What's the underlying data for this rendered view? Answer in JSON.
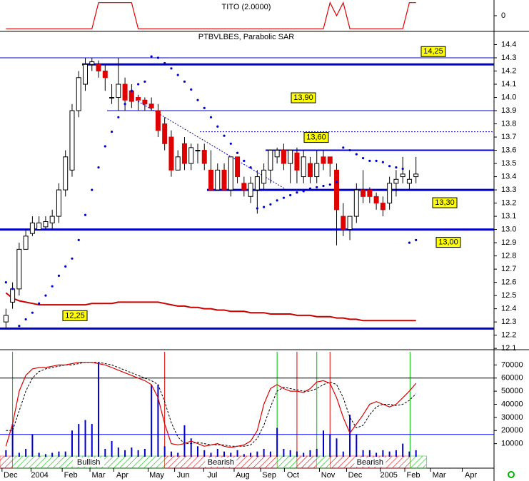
{
  "chart_data": [
    {
      "type": "line",
      "title": "TITO (2.0000)",
      "color": "#e00000",
      "x": [
        0,
        1,
        2,
        3,
        4,
        5,
        6,
        7,
        8,
        9,
        10,
        11,
        12,
        13,
        14,
        15,
        16,
        17,
        18,
        19,
        20,
        21,
        22,
        23,
        24,
        25,
        26,
        27,
        28,
        29,
        30,
        31,
        32,
        33,
        34,
        35,
        36,
        37,
        38,
        39,
        40,
        41,
        42,
        43,
        44,
        45,
        46,
        47,
        48,
        49,
        50,
        51,
        52,
        53,
        54,
        55,
        56,
        57,
        58,
        59,
        60,
        61,
        62
      ],
      "values": [
        -1,
        -1,
        -1,
        -1,
        -1,
        -1,
        -1,
        -1,
        -1,
        -1,
        -1,
        -1,
        -1,
        -1,
        1,
        1,
        1,
        1,
        1,
        1,
        -1,
        -1,
        -1,
        -1,
        -1,
        -1,
        -1,
        -1,
        -1,
        -1,
        -1,
        -1,
        -1,
        -1,
        -1,
        -1,
        -1,
        -1,
        -1,
        -1,
        -1,
        -1,
        -1,
        -1,
        -1,
        -1,
        -1,
        -1,
        -1,
        1,
        0,
        1,
        -1,
        -1,
        -1,
        -1,
        -1,
        -1,
        -1,
        -1,
        -1,
        1,
        1
      ],
      "xlim": [
        -0.9,
        73.8
      ],
      "ylim": [
        -1.2,
        1.2
      ],
      "yticks": [
        0
      ]
    },
    {
      "type": "candlestick",
      "title": "PTBVLBES, Parabolic SAR",
      "up_color": "#ffffff",
      "down_color": "#e00000",
      "x": [
        0,
        1,
        2,
        3,
        4,
        5,
        6,
        7,
        8,
        9,
        10,
        11,
        12,
        13,
        14,
        15,
        16,
        17,
        18,
        19,
        20,
        21,
        22,
        23,
        24,
        25,
        26,
        27,
        28,
        29,
        30,
        31,
        32,
        33,
        34,
        35,
        36,
        37,
        38,
        39,
        40,
        41,
        42,
        43,
        44,
        45,
        46,
        47,
        48,
        49,
        50,
        51,
        52,
        53,
        54,
        55,
        56,
        57,
        58,
        59,
        60,
        61,
        62
      ],
      "open": [
        12.3,
        12.45,
        12.55,
        12.85,
        12.97,
        13.0,
        13.02,
        13.05,
        13.1,
        13.3,
        13.45,
        13.9,
        14.1,
        14.25,
        14.25,
        14.2,
        14.0,
        14.0,
        14.1,
        14.05,
        14.0,
        13.98,
        13.95,
        13.9,
        13.8,
        13.7,
        13.45,
        13.65,
        13.5,
        13.6,
        13.6,
        13.45,
        13.3,
        13.45,
        13.3,
        13.55,
        13.35,
        13.25,
        13.3,
        13.35,
        13.45,
        13.55,
        13.6,
        13.5,
        13.58,
        13.4,
        13.5,
        13.4,
        13.55,
        13.55,
        13.45,
        13.1,
        13.0,
        13.1,
        13.3,
        13.3,
        13.25,
        13.2,
        13.2,
        13.35,
        13.4,
        13.35,
        13.4
      ],
      "high": [
        12.4,
        12.6,
        12.9,
        13.0,
        13.1,
        13.1,
        13.1,
        13.15,
        13.35,
        13.6,
        13.95,
        14.2,
        14.3,
        14.3,
        14.28,
        14.25,
        14.1,
        14.3,
        14.15,
        14.1,
        14.02,
        14.0,
        14.0,
        13.95,
        13.85,
        13.75,
        13.6,
        13.7,
        13.65,
        13.65,
        13.65,
        13.6,
        13.5,
        13.5,
        13.55,
        13.55,
        13.4,
        13.4,
        13.45,
        13.5,
        13.6,
        13.62,
        13.65,
        13.6,
        13.62,
        13.6,
        13.55,
        13.6,
        13.6,
        13.55,
        13.5,
        13.2,
        13.1,
        13.35,
        13.45,
        13.32,
        13.28,
        13.25,
        13.4,
        13.45,
        13.55,
        13.45,
        13.55
      ],
      "low": [
        12.25,
        12.4,
        12.5,
        12.85,
        12.95,
        13.0,
        13.0,
        13.0,
        13.05,
        13.25,
        13.4,
        13.85,
        14.05,
        14.2,
        14.15,
        14.05,
        13.95,
        13.9,
        13.9,
        13.92,
        13.9,
        13.9,
        13.9,
        13.7,
        13.6,
        13.4,
        13.45,
        13.45,
        13.45,
        13.5,
        13.45,
        13.3,
        13.3,
        13.3,
        13.25,
        13.35,
        13.25,
        13.2,
        13.12,
        13.3,
        13.35,
        13.5,
        13.45,
        13.35,
        13.35,
        13.35,
        13.35,
        13.35,
        13.45,
        13.4,
        12.88,
        12.95,
        12.92,
        13.05,
        13.2,
        13.2,
        13.15,
        13.1,
        13.15,
        13.25,
        13.35,
        13.3,
        13.35
      ],
      "close": [
        12.35,
        12.55,
        12.85,
        12.95,
        13.05,
        13.05,
        13.06,
        13.1,
        13.3,
        13.55,
        13.9,
        14.15,
        14.25,
        14.27,
        14.2,
        14.15,
        14.0,
        14.1,
        13.98,
        13.97,
        13.98,
        13.95,
        13.92,
        13.75,
        13.65,
        13.45,
        13.55,
        13.5,
        13.62,
        13.6,
        13.5,
        13.3,
        13.45,
        13.3,
        13.55,
        13.4,
        13.3,
        13.35,
        13.4,
        13.45,
        13.6,
        13.6,
        13.5,
        13.6,
        13.45,
        13.55,
        13.4,
        13.5,
        13.5,
        13.5,
        13.15,
        13.0,
        13.1,
        13.3,
        13.25,
        13.25,
        13.2,
        13.15,
        13.35,
        13.38,
        13.42,
        13.38,
        13.42
      ],
      "sar": {
        "color": "#0000cc",
        "values": [
          12.6,
          12.55,
          12.27,
          12.32,
          12.37,
          12.44,
          12.5,
          12.57,
          12.65,
          12.72,
          12.78,
          12.92,
          13.11,
          13.3,
          13.47,
          13.63,
          13.74,
          13.85,
          13.95,
          14.05,
          14.1,
          14.12,
          14.31,
          14.3,
          14.26,
          14.22,
          14.17,
          14.12,
          14.06,
          13.98,
          13.92,
          13.85,
          13.78,
          13.71,
          13.65,
          13.58,
          13.52,
          13.47,
          13.16,
          13.17,
          13.19,
          13.22,
          13.24,
          13.26,
          13.28,
          13.29,
          13.31,
          13.32,
          13.33,
          13.34,
          13.36,
          13.62,
          13.6,
          13.57,
          13.54,
          13.52,
          13.52,
          13.51,
          13.48,
          13.47,
          13.46,
          12.9,
          12.92
        ]
      },
      "average": {
        "color": "#cc0000",
        "values": [
          12.52,
          12.48,
          12.46,
          12.45,
          12.44,
          12.43,
          12.43,
          12.43,
          12.43,
          12.43,
          12.43,
          12.43,
          12.43,
          12.44,
          12.44,
          12.44,
          12.44,
          12.45,
          12.45,
          12.45,
          12.45,
          12.45,
          12.45,
          12.45,
          12.44,
          12.43,
          12.42,
          12.42,
          12.41,
          12.41,
          12.4,
          12.4,
          12.39,
          12.39,
          12.38,
          12.38,
          12.38,
          12.37,
          12.37,
          12.37,
          12.36,
          12.36,
          12.36,
          12.36,
          12.35,
          12.35,
          12.35,
          12.34,
          12.34,
          12.34,
          12.33,
          12.33,
          12.32,
          12.32,
          12.31,
          12.31,
          12.31,
          12.31,
          12.31,
          12.31,
          12.31,
          12.31,
          12.31
        ]
      },
      "levels": [
        {
          "value": 14.3,
          "style": "thin"
        },
        {
          "value": 14.25,
          "style": "thick",
          "label": "14,25"
        },
        {
          "value": 13.9,
          "style": "thin",
          "label": "13,90"
        },
        {
          "value": 13.74,
          "style": "dotted"
        },
        {
          "value": 13.6,
          "style": "medium",
          "label": "13,60"
        },
        {
          "value": 13.3,
          "style": "thick",
          "label": "13,30"
        },
        {
          "value": 13.0,
          "style": "thick",
          "label": "13,00"
        },
        {
          "value": 12.25,
          "style": "thick",
          "label": "12,25"
        }
      ],
      "xlim": [
        -0.9,
        73.8
      ],
      "ylim": [
        12.09,
        14.5
      ],
      "yticks": [
        12.1,
        12.2,
        12.3,
        12.4,
        12.5,
        12.6,
        12.7,
        12.8,
        12.9,
        {
          "value": 13,
          "label": "13.0"
        },
        13.1,
        13.2,
        13.3,
        13.4,
        13.5,
        13.6,
        13.7,
        13.8,
        13.9,
        {
          "value": 14,
          "label": "14.0"
        },
        14.1,
        14.2,
        14.3,
        14.4
      ]
    },
    {
      "type": "bar",
      "color": "#0000cc",
      "x": [
        0,
        1,
        2,
        3,
        4,
        5,
        6,
        7,
        8,
        9,
        10,
        11,
        12,
        13,
        14,
        15,
        16,
        17,
        18,
        19,
        20,
        21,
        22,
        23,
        24,
        25,
        26,
        27,
        28,
        29,
        30,
        31,
        32,
        33,
        34,
        35,
        36,
        37,
        38,
        39,
        40,
        41,
        42,
        43,
        44,
        45,
        46,
        47,
        48,
        49,
        50,
        51,
        52,
        53,
        54,
        55,
        56,
        57,
        58,
        59,
        60,
        61,
        62
      ],
      "values": [
        5000,
        25000,
        3000,
        6000,
        17000,
        3000,
        2000,
        3000,
        4000,
        4000,
        20000,
        25000,
        28000,
        25000,
        72000,
        6000,
        12000,
        7000,
        5000,
        7000,
        5000,
        6000,
        55000,
        55000,
        8000,
        4000,
        3000,
        24000,
        14000,
        8000,
        5000,
        3000,
        6000,
        4000,
        3000,
        5000,
        2000,
        3000,
        4000,
        6000,
        4000,
        22000,
        6000,
        5000,
        4000,
        3000,
        5000,
        6000,
        20000,
        17000,
        14000,
        4000,
        32000,
        17000,
        5000,
        5000,
        3000,
        5000,
        4000,
        5000,
        10000,
        4000,
        5000
      ],
      "stochastic": {
        "k": {
          "color": "#dd0000",
          "values": [
            8000,
            25000,
            50000,
            62000,
            67000,
            68000,
            68000,
            69000,
            70000,
            70000,
            71000,
            72000,
            72000,
            72000,
            71000,
            70000,
            68000,
            66000,
            64000,
            62000,
            60000,
            58000,
            55000,
            45000,
            25000,
            10000,
            9000,
            10000,
            12000,
            10000,
            8000,
            9000,
            10000,
            8000,
            7000,
            8000,
            9000,
            12000,
            20000,
            40000,
            52000,
            55000,
            52000,
            50000,
            50000,
            49000,
            52000,
            57000,
            58000,
            56000,
            45000,
            30000,
            18000,
            25000,
            32000,
            40000,
            42000,
            40000,
            38000,
            40000,
            45000,
            50000,
            56000
          ]
        },
        "d": {
          "color": "#000000",
          "values": [
            20000,
            20000,
            35000,
            50000,
            60000,
            65000,
            67000,
            68000,
            69000,
            70000,
            70000,
            71000,
            72000,
            72000,
            72000,
            71000,
            70000,
            68000,
            66000,
            64000,
            62000,
            60000,
            58000,
            55000,
            42000,
            26000,
            15000,
            10000,
            10000,
            11000,
            10000,
            9000,
            9000,
            9000,
            8000,
            8000,
            8000,
            9000,
            14000,
            24000,
            38000,
            50000,
            53000,
            52000,
            51000,
            50000,
            50000,
            52000,
            55000,
            57000,
            55000,
            45000,
            30000,
            22000,
            24000,
            32000,
            38000,
            40000,
            40000,
            39000,
            40000,
            43000,
            48000
          ]
        }
      },
      "levels": [
        {
          "value": 60000,
          "color": "#000000"
        },
        {
          "value": 17000,
          "color": "#0000ff"
        }
      ],
      "regions": [
        {
          "from": -0.9,
          "to": 1.0,
          "color": "#e00000"
        },
        {
          "from": 1.0,
          "to": 24.0,
          "color": "#00c000",
          "label": "Bullish"
        },
        {
          "from": 24.0,
          "to": 41.0,
          "color": "#e00000",
          "label": "Bearish"
        },
        {
          "from": 41.0,
          "to": 44.0,
          "color": "#00c000"
        },
        {
          "from": 44.0,
          "to": 47.0,
          "color": "#e00000"
        },
        {
          "from": 47.0,
          "to": 49.0,
          "color": "#00c000"
        },
        {
          "from": 49.0,
          "to": 61.1,
          "color": "#e00000",
          "label": "Bearish"
        },
        {
          "from": 61.1,
          "to": 63.6,
          "color": "#00c000"
        }
      ],
      "xlim": [
        -0.9,
        73.8
      ],
      "ylim": [
        0,
        80000
      ],
      "yticks": [
        10000,
        20000,
        30000,
        40000,
        50000,
        60000,
        70000
      ],
      "xticks": [
        {
          "value": 0.7,
          "label": "Dec"
        },
        {
          "value": 5.1,
          "label": "2004"
        },
        {
          "value": 9.8,
          "label": "Feb"
        },
        {
          "value": 14.0,
          "label": "Mar"
        },
        {
          "value": 17.6,
          "label": "Apr"
        },
        {
          "value": 22.8,
          "label": "May"
        },
        {
          "value": 26.8,
          "label": "Jun"
        },
        {
          "value": 31.2,
          "label": "Jul"
        },
        {
          "value": 35.8,
          "label": "Aug"
        },
        {
          "value": 39.8,
          "label": "Sep"
        },
        {
          "value": 43.4,
          "label": "Oct"
        },
        {
          "value": 48.7,
          "label": "Nov"
        },
        {
          "value": 52.8,
          "label": "Dec"
        },
        {
          "value": 57.9,
          "label": "2005"
        },
        {
          "value": 61.6,
          "label": "Feb"
        },
        {
          "value": 65.5,
          "label": "Mar"
        },
        {
          "value": 70.3,
          "label": "Apr"
        }
      ]
    }
  ]
}
